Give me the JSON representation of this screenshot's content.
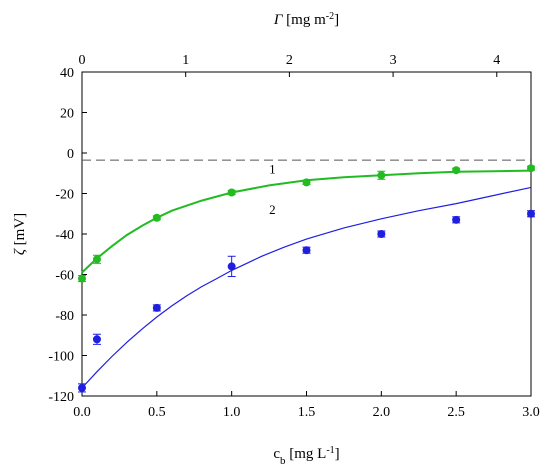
{
  "chart_data": {
    "type": "scatter",
    "title": "",
    "xlabel": "c",
    "xlabel_sub": "b",
    "xlabel_units_pre": " [mg L",
    "xlabel_units_sup": "-1",
    "xlabel_units_post": "]",
    "x2label": "Γ",
    "x2label_units_pre": " [mg m",
    "x2label_units_sup": "-2",
    "x2label_units_post": "]",
    "ylabel": "ζ",
    "ylabel_units": " [mV]",
    "xlim": [
      0,
      3
    ],
    "x2lim": [
      0,
      4.33
    ],
    "ylim": [
      -120,
      40
    ],
    "x_ticks": [
      "0.0",
      "0.5",
      "1.0",
      "1.5",
      "2.0",
      "2.5",
      "3.0"
    ],
    "x2_ticks": [
      "0",
      "1",
      "2",
      "3",
      "4"
    ],
    "y_ticks": [
      "40",
      "20",
      "0",
      "-20",
      "-40",
      "-60",
      "-80",
      "-100",
      "-120"
    ],
    "grid": false,
    "reference_line": {
      "y": -3.5,
      "style": "dashed",
      "color": "#555555"
    },
    "curve_labels": [
      "1",
      "2"
    ],
    "series": [
      {
        "color": "#22bb22",
        "marker": "circle",
        "points": [
          {
            "x": 0.0,
            "y": -62,
            "err": 1.5
          },
          {
            "x": 0.1,
            "y": -52.5,
            "err": 2
          },
          {
            "x": 0.5,
            "y": -32,
            "err": 1
          },
          {
            "x": 1.0,
            "y": -19.5,
            "err": 1
          },
          {
            "x": 1.5,
            "y": -14.5,
            "err": 1
          },
          {
            "x": 2.0,
            "y": -11,
            "err": 2
          },
          {
            "x": 2.5,
            "y": -8.5,
            "err": 1
          },
          {
            "x": 3.0,
            "y": -7.5,
            "err": 1
          }
        ],
        "fit": [
          [
            0.0,
            -59
          ],
          [
            0.1,
            -52
          ],
          [
            0.2,
            -46
          ],
          [
            0.3,
            -40.5
          ],
          [
            0.4,
            -36
          ],
          [
            0.5,
            -32
          ],
          [
            0.6,
            -28.5
          ],
          [
            0.8,
            -23.5
          ],
          [
            1.0,
            -19.5
          ],
          [
            1.25,
            -16
          ],
          [
            1.5,
            -13.5
          ],
          [
            1.75,
            -12
          ],
          [
            2.0,
            -11
          ],
          [
            2.25,
            -10
          ],
          [
            2.5,
            -9.3
          ],
          [
            2.75,
            -9
          ],
          [
            3.0,
            -8.7
          ]
        ]
      },
      {
        "color": "#1f1fe0",
        "marker": "circle",
        "points": [
          {
            "x": 0.0,
            "y": -116,
            "err": 2
          },
          {
            "x": 0.1,
            "y": -92,
            "err": 2.5
          },
          {
            "x": 0.5,
            "y": -76.5,
            "err": 1.5
          },
          {
            "x": 1.0,
            "y": -56,
            "err": 5
          },
          {
            "x": 1.5,
            "y": -48,
            "err": 1.5
          },
          {
            "x": 2.0,
            "y": -40,
            "err": 1.5
          },
          {
            "x": 2.5,
            "y": -33,
            "err": 1.5
          },
          {
            "x": 3.0,
            "y": -30,
            "err": 1.5
          }
        ],
        "fit": [
          [
            0.0,
            -116
          ],
          [
            0.1,
            -108
          ],
          [
            0.2,
            -100.5
          ],
          [
            0.3,
            -93.5
          ],
          [
            0.4,
            -87
          ],
          [
            0.5,
            -81
          ],
          [
            0.6,
            -75.5
          ],
          [
            0.7,
            -70.5
          ],
          [
            0.8,
            -66
          ],
          [
            0.9,
            -62
          ],
          [
            1.0,
            -58
          ],
          [
            1.1,
            -54.5
          ],
          [
            1.2,
            -51
          ],
          [
            1.35,
            -46.5
          ],
          [
            1.5,
            -42.5
          ],
          [
            1.75,
            -37
          ],
          [
            2.0,
            -32.5
          ],
          [
            2.25,
            -28.5
          ],
          [
            2.5,
            -25
          ],
          [
            2.75,
            -21
          ],
          [
            3.0,
            -17
          ]
        ]
      }
    ]
  }
}
